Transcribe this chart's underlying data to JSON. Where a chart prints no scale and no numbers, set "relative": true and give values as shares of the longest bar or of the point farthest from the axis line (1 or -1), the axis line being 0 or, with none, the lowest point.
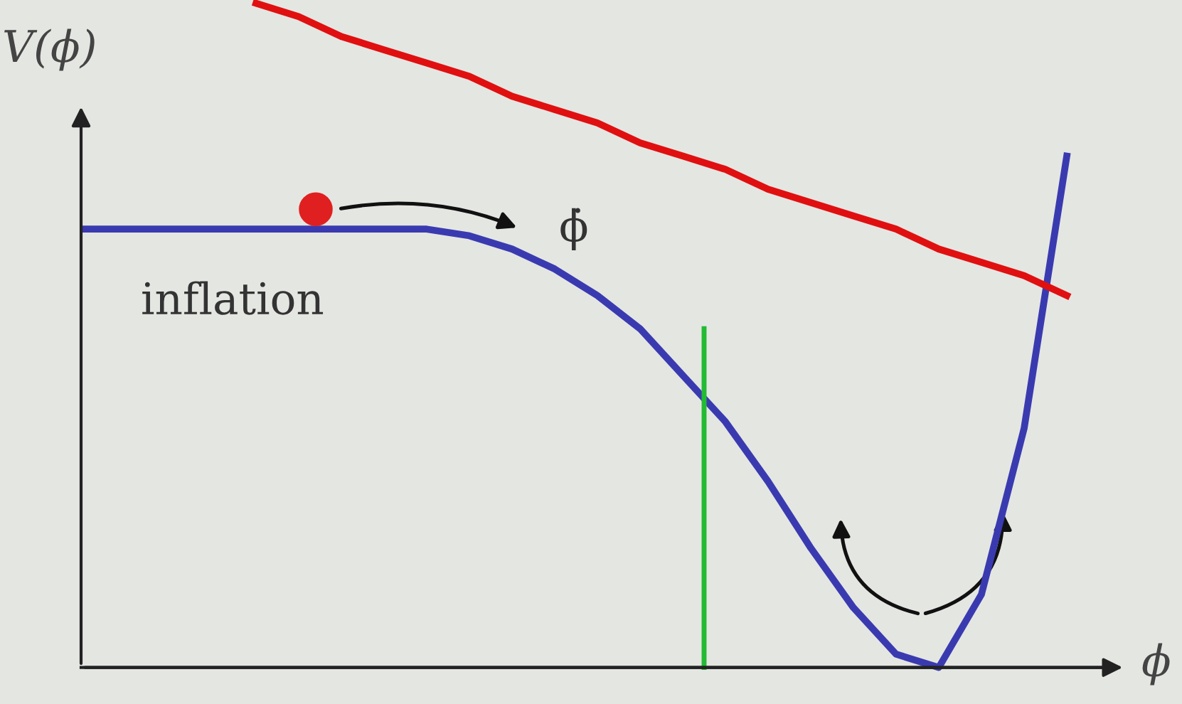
{
  "chart_data": {
    "type": "line",
    "relative": true,
    "ylabel": "V(ϕ)",
    "xlabel": "ϕ",
    "categories": [
      null,
      null,
      null,
      null,
      null,
      null,
      null,
      null,
      null,
      null,
      null,
      null,
      null,
      null,
      null,
      null,
      null,
      null,
      null,
      null,
      null,
      null,
      null,
      null
    ],
    "series": [
      {
        "color": "#3a3ab0",
        "values": [
          0.66,
          0.66,
          0.66,
          0.66,
          0.66,
          0.66,
          0.66,
          0.66,
          0.66,
          0.65,
          0.63,
          0.6,
          0.56,
          0.51,
          0.44,
          0.37,
          0.28,
          0.18,
          0.09,
          0.02,
          0.0,
          0.11,
          0.36,
          0.77
        ]
      },
      {
        "color": "#e01010",
        "values": [
          null,
          null,
          null,
          null,
          1.0,
          0.98,
          0.95,
          0.93,
          0.91,
          0.89,
          0.86,
          0.84,
          0.82,
          0.79,
          0.77,
          0.75,
          0.72,
          0.7,
          0.68,
          0.66,
          0.63,
          0.61,
          0.59,
          0.56
        ]
      }
    ],
    "annotations": [
      "ϕ̇",
      "inflation"
    ],
    "legend": false,
    "marker": "none",
    "line_style": "solid"
  }
}
